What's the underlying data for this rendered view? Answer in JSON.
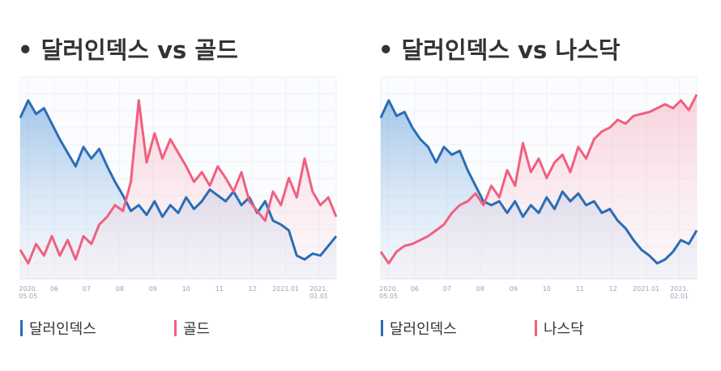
{
  "chart_data": [
    {
      "type": "line",
      "title": "• 달러인덱스 vs 골드",
      "xlim": [
        0,
        40
      ],
      "xticks": [
        {
          "value": 1,
          "label": "2020.\n05.05"
        },
        {
          "value": 4.3,
          "label": "06"
        },
        {
          "value": 8.4,
          "label": "07"
        },
        {
          "value": 12.6,
          "label": "08"
        },
        {
          "value": 16.8,
          "label": "09"
        },
        {
          "value": 21,
          "label": "10"
        },
        {
          "value": 25.2,
          "label": "11"
        },
        {
          "value": 29.4,
          "label": "12"
        },
        {
          "value": 33.6,
          "label": "2021.01"
        },
        {
          "value": 37.8,
          "label": "2021.\n02.01"
        }
      ],
      "ylim": [
        0,
        100
      ],
      "series": [
        {
          "name": "달러인덱스",
          "color": "#2a6db5",
          "values": [
            83,
            92,
            85,
            88,
            80,
            72,
            65,
            58,
            68,
            62,
            67,
            58,
            50,
            43,
            35,
            38,
            33,
            40,
            32,
            38,
            34,
            42,
            36,
            40,
            46,
            43,
            40,
            45,
            38,
            42,
            34,
            40,
            30,
            28,
            25,
            12,
            10,
            13,
            12,
            17,
            22
          ]
        },
        {
          "name": "골드",
          "color": "#f0607f",
          "values": [
            15,
            8,
            18,
            12,
            22,
            12,
            20,
            10,
            22,
            18,
            28,
            32,
            38,
            35,
            50,
            92,
            60,
            75,
            62,
            72,
            65,
            58,
            50,
            55,
            48,
            58,
            52,
            45,
            55,
            40,
            35,
            30,
            45,
            38,
            52,
            42,
            62,
            45,
            38,
            42,
            32
          ]
        }
      ]
    },
    {
      "type": "line",
      "title": "• 달러인덱스 vs 나스닥",
      "xlim": [
        0,
        40
      ],
      "xticks": [
        {
          "value": 1,
          "label": "2020.\n05.05"
        },
        {
          "value": 4.3,
          "label": "06"
        },
        {
          "value": 8.4,
          "label": "07"
        },
        {
          "value": 12.6,
          "label": "08"
        },
        {
          "value": 16.8,
          "label": "09"
        },
        {
          "value": 21,
          "label": "10"
        },
        {
          "value": 25.2,
          "label": "11"
        },
        {
          "value": 29.4,
          "label": "12"
        },
        {
          "value": 33.6,
          "label": "2021.01"
        },
        {
          "value": 37.8,
          "label": "2021.\n02.01"
        }
      ],
      "ylim": [
        0,
        100
      ],
      "series": [
        {
          "name": "달러인덱스",
          "color": "#2a6db5",
          "values": [
            83,
            92,
            84,
            86,
            78,
            72,
            68,
            60,
            68,
            64,
            66,
            56,
            48,
            40,
            38,
            40,
            34,
            40,
            32,
            38,
            34,
            42,
            36,
            45,
            40,
            44,
            38,
            40,
            34,
            36,
            30,
            26,
            20,
            15,
            12,
            8,
            10,
            14,
            20,
            18,
            25
          ]
        },
        {
          "name": "나스닥",
          "color": "#f0607f",
          "values": [
            14,
            8,
            14,
            17,
            18,
            20,
            22,
            25,
            28,
            34,
            38,
            40,
            44,
            38,
            48,
            42,
            56,
            48,
            70,
            55,
            62,
            52,
            60,
            64,
            55,
            68,
            62,
            72,
            76,
            78,
            82,
            80,
            84,
            85,
            86,
            88,
            90,
            88,
            92,
            87,
            95
          ]
        }
      ]
    }
  ]
}
